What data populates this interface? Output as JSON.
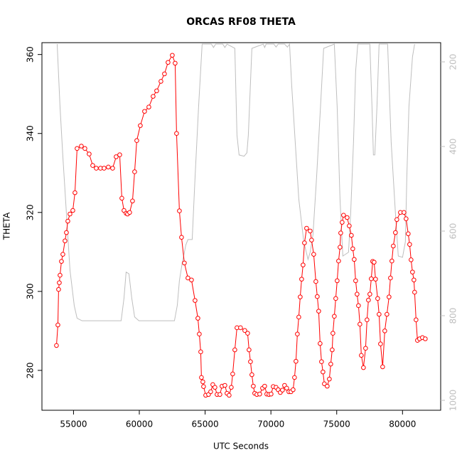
{
  "chart_data": {
    "type": "line",
    "title": "ORCAS RF08 THETA",
    "x_label": "UTC Seconds",
    "y_label": "THETA",
    "xlim": [
      52600,
      82900
    ],
    "ylim": [
      269.9,
      363
    ],
    "y2lim": [
      1023.5,
      154.6
    ],
    "xticks": [
      55000,
      60000,
      65000,
      70000,
      75000,
      80000
    ],
    "yticks": [
      280,
      300,
      320,
      340,
      360
    ],
    "y2ticks": [
      200,
      400,
      600,
      800,
      1000
    ],
    "series": [
      {
        "color": "#ff0000",
        "marker": "circle",
        "x": [
          53704,
          53812,
          53866,
          53920,
          53974,
          54082,
          54190,
          54352,
          54460,
          54568,
          54730,
          54946,
          55108,
          55270,
          55594,
          55864,
          56188,
          56458,
          56728,
          57052,
          57322,
          57646,
          57970,
          58240,
          58510,
          58672,
          58834,
          58996,
          59104,
          59266,
          59482,
          59644,
          59806,
          60076,
          60400,
          60724,
          61048,
          61318,
          61642,
          61912,
          62182,
          62506,
          62722,
          62830,
          63046,
          63208,
          63424,
          63694,
          63964,
          64234,
          64450,
          64558,
          64666,
          64720,
          64828,
          64882,
          65044,
          65260,
          65422,
          65584,
          65746,
          65908,
          66124,
          66286,
          66502,
          66664,
          66826,
          66988,
          67096,
          67258,
          67420,
          67690,
          68014,
          68230,
          68338,
          68446,
          68554,
          68662,
          68770,
          68932,
          69148,
          69364,
          69526,
          69688,
          69850,
          70012,
          70174,
          70390,
          70552,
          70714,
          70876,
          71038,
          71200,
          71362,
          71524,
          71686,
          71794,
          71902,
          72010,
          72118,
          72226,
          72334,
          72442,
          72550,
          72712,
          72982,
          73090,
          73252,
          73414,
          73522,
          73630,
          73738,
          73846,
          73954,
          74062,
          74278,
          74440,
          74548,
          74656,
          74710,
          74818,
          74926,
          75034,
          75142,
          75250,
          75304,
          75412,
          75520,
          75790,
          75952,
          76114,
          76222,
          76330,
          76438,
          76546,
          76654,
          76762,
          76870,
          77032,
          77194,
          77302,
          77410,
          77518,
          77626,
          77734,
          77842,
          77950,
          78112,
          78220,
          78328,
          78490,
          78652,
          78814,
          78976,
          79084,
          79192,
          79300,
          79462,
          79570,
          79840,
          80110,
          80272,
          80434,
          80542,
          80650,
          80758,
          80866,
          80920,
          81028,
          81136,
          81298,
          81514,
          81730
        ],
        "values": [
          286.3,
          291.5,
          300.5,
          302.2,
          304.1,
          307.6,
          309.4,
          312.8,
          314.9,
          317.8,
          319.6,
          320.5,
          325.0,
          336.2,
          336.8,
          336.2,
          334.8,
          331.9,
          331.2,
          331.2,
          331.2,
          331.5,
          331.2,
          334.1,
          334.6,
          323.6,
          320.5,
          319.8,
          319.6,
          320.0,
          322.9,
          330.3,
          338.2,
          342.0,
          345.6,
          346.7,
          349.4,
          350.8,
          353.2,
          355.1,
          358.0,
          359.8,
          357.8,
          340.0,
          320.4,
          313.7,
          307.2,
          303.4,
          302.9,
          297.7,
          293.2,
          289.2,
          284.7,
          278.2,
          277.1,
          275.9,
          273.7,
          273.9,
          274.6,
          276.4,
          275.7,
          273.9,
          273.9,
          276.0,
          276.2,
          274.2,
          273.7,
          275.7,
          279.1,
          285.2,
          290.8,
          290.8,
          290.1,
          289.4,
          285.2,
          282.2,
          278.9,
          276.0,
          274.2,
          273.9,
          274.0,
          275.5,
          276.0,
          274.0,
          273.9,
          274.0,
          275.9,
          275.7,
          275.1,
          274.4,
          275.0,
          276.2,
          275.5,
          274.6,
          274.6,
          275.1,
          278.2,
          282.3,
          289.2,
          293.5,
          298.6,
          303.1,
          306.7,
          312.3,
          316.0,
          315.3,
          313.0,
          309.4,
          302.5,
          298.7,
          295.0,
          286.8,
          282.2,
          279.6,
          276.6,
          276.0,
          277.8,
          281.6,
          285.2,
          289.4,
          293.7,
          298.2,
          302.7,
          307.7,
          311.2,
          314.8,
          317.5,
          319.3,
          318.7,
          316.6,
          314.2,
          310.8,
          308.1,
          302.7,
          299.3,
          296.4,
          291.7,
          283.8,
          280.7,
          285.6,
          292.8,
          297.8,
          299.3,
          303.2,
          307.6,
          307.4,
          303.1,
          298.2,
          294.2,
          286.7,
          280.9,
          290.0,
          294.2,
          298.6,
          303.4,
          307.7,
          311.5,
          314.9,
          318.2,
          320.0,
          320.0,
          318.4,
          314.6,
          311.9,
          308.0,
          304.9,
          302.9,
          299.8,
          292.8,
          287.6,
          288.0,
          288.3,
          288.0
        ]
      },
      {
        "color": "#bebebe",
        "axis": "y2",
        "x": [
          53758,
          53974,
          54190,
          54460,
          54730,
          55054,
          55270,
          55648,
          58618,
          58834,
          58996,
          59212,
          59428,
          59644,
          59968,
          62668,
          62884,
          63046,
          63262,
          63532,
          63694,
          64018,
          64234,
          64504,
          64774,
          65476,
          65638,
          65800,
          66340,
          66502,
          66664,
          67258,
          67420,
          67582,
          67960,
          68176,
          68284,
          68554,
          69418,
          69526,
          69634,
          70228,
          70390,
          70552,
          71038,
          71254,
          71416,
          71578,
          71848,
          72118,
          72496,
          72820,
          72982,
          73198,
          73468,
          73738,
          74008,
          74818,
          75034,
          75250,
          75466,
          75898,
          76060,
          76276,
          76438,
          76600,
          77518,
          77680,
          77788,
          77896,
          78058,
          78220,
          78868,
          79138,
          79462,
          79678,
          80002,
          80218,
          80326,
          80488,
          80758,
          80920
        ],
        "values": [
          158,
          306,
          424,
          558,
          692,
          776,
          806,
          812,
          812,
          759,
          697,
          701,
          759,
          803,
          812,
          812,
          776,
          717,
          675,
          633,
          620,
          620,
          474,
          306,
          158,
          158,
          166,
          158,
          158,
          166,
          158,
          168,
          373,
          420,
          423,
          415,
          373,
          168,
          158,
          166,
          158,
          158,
          165,
          158,
          158,
          165,
          158,
          255,
          390,
          524,
          625,
          667,
          650,
          608,
          474,
          323,
          168,
          158,
          306,
          524,
          659,
          650,
          558,
          390,
          222,
          158,
          158,
          306,
          420,
          420,
          306,
          158,
          158,
          390,
          558,
          659,
          662,
          625,
          474,
          306,
          188,
          158
        ]
      }
    ]
  }
}
